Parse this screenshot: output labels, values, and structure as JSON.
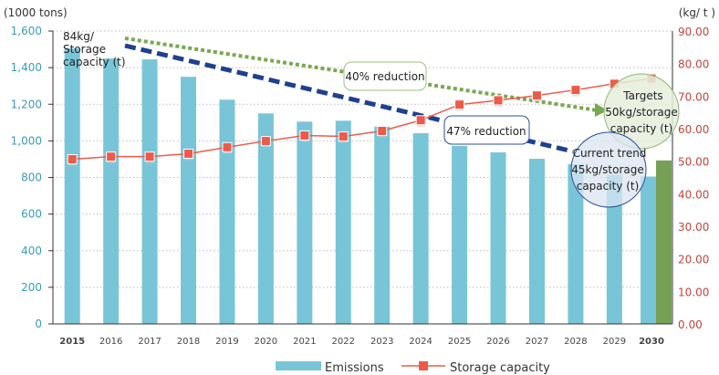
{
  "chart_data": {
    "type": "bar+line",
    "categories": [
      "2015",
      "2016",
      "2017",
      "2018",
      "2019",
      "2020",
      "2021",
      "2022",
      "2023",
      "2024",
      "2025",
      "2026",
      "2027",
      "2028",
      "2029",
      "2030"
    ],
    "bold_categories": [
      "2015",
      "2030"
    ],
    "left_axis": {
      "unit_label": "(1000 tons)",
      "ylim": [
        0,
        1600
      ],
      "ticks": [
        "0",
        "200",
        "400",
        "600",
        "800",
        "1,000",
        "1,200",
        "1,400",
        "1,600"
      ],
      "tick_values": [
        0,
        200,
        400,
        600,
        800,
        1000,
        1200,
        1400,
        1600
      ],
      "color": "#3a9bb5"
    },
    "right_axis": {
      "unit_label": "(kg/ t )",
      "ylim": [
        0,
        90
      ],
      "ticks": [
        "0.00",
        "10.00",
        "20.00",
        "30.00",
        "40.00",
        "50.00",
        "60.00",
        "70.00",
        "80.00",
        "90.00"
      ],
      "tick_values": [
        0,
        10,
        20,
        30,
        40,
        50,
        60,
        70,
        80,
        90
      ],
      "color": "#c0463a"
    },
    "grid": true,
    "legend_position": "bottom",
    "series": [
      {
        "name": "Emissions",
        "type": "bar",
        "axis": "left",
        "color": "#79c5d8",
        "values": [
          1505,
          1450,
          1445,
          1350,
          1225,
          1150,
          1105,
          1110,
          1078,
          1042,
          972,
          937,
          902,
          872,
          815,
          805
        ]
      },
      {
        "name": "Storage capacity",
        "type": "line",
        "axis": "right",
        "color": "#ee5a4a",
        "values": [
          50.6,
          51.4,
          51.4,
          52.3,
          54.3,
          56.2,
          57.9,
          57.6,
          59.3,
          62.6,
          67.4,
          68.7,
          70.2,
          71.9,
          73.8,
          75.4
        ]
      }
    ],
    "target_bar": {
      "category": "2030",
      "value": 893,
      "axis": "left",
      "color": "#76a056"
    },
    "annotations": {
      "start_label": [
        "84kg/",
        "Storage",
        "capacity (t)"
      ],
      "green_reduction": "40% reduction",
      "blue_reduction": "47% reduction",
      "targets": [
        "Targets",
        "50kg/storage",
        "capacity (t)"
      ],
      "current_trend": [
        "Current trend",
        "45kg/storage",
        "capacity (t)"
      ]
    },
    "trend_colors": {
      "target_line": "#7aa850",
      "current_line": "#1f3f8f"
    }
  }
}
